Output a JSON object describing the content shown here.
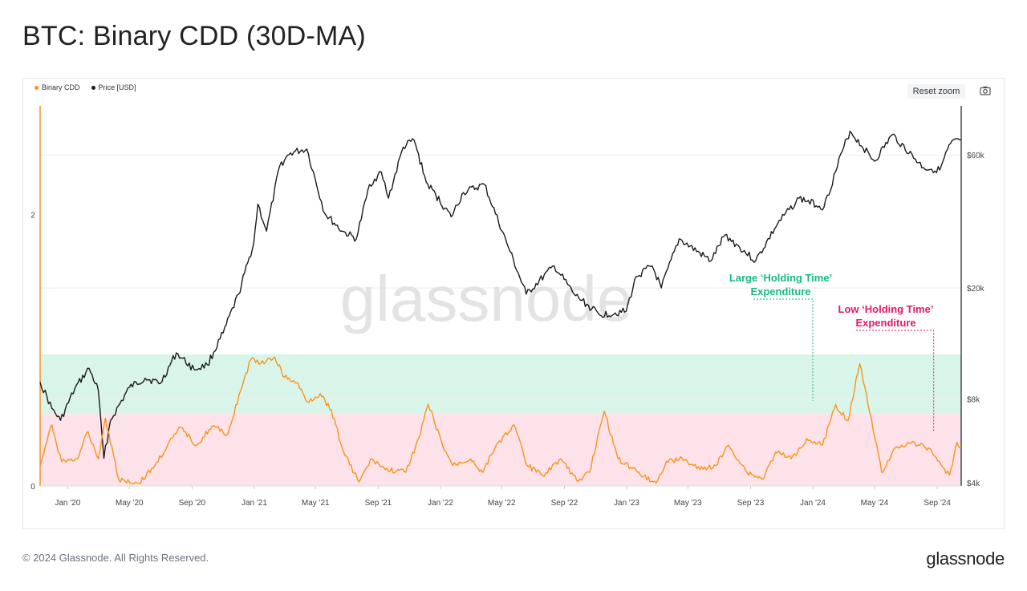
{
  "page": {
    "title": "BTC: Binary CDD (30D-MA)",
    "copyright": "© 2024 Glassnode. All Rights Reserved.",
    "brand": "glassnode"
  },
  "toolbar": {
    "reset_zoom_label": "Reset zoom",
    "camera_icon": "camera-icon"
  },
  "colors": {
    "cdd": "#f7931a",
    "price": "#1a1a1a",
    "green_band": "#d9f5ea",
    "red_band": "#fde2ea",
    "annotation_green": "#16b981",
    "annotation_red": "#e5186a"
  },
  "chart_data": {
    "type": "line",
    "title": "BTC: Binary CDD (30D-MA)",
    "watermark": "glassnode",
    "legend": [
      {
        "name": "Binary CDD",
        "color": "#f7931a"
      },
      {
        "name": "Price [USD]",
        "color": "#1a1a1a"
      }
    ],
    "legend_placement": "top-left",
    "x_ticks": [
      "Jan '20",
      "May '20",
      "Sep '20",
      "Jan '21",
      "May '21",
      "Sep '21",
      "Jan '22",
      "May '22",
      "Sep '22",
      "Jan '23",
      "May '23",
      "Sep '23",
      "Jan '24",
      "May '24",
      "Sep '24"
    ],
    "x_range": [
      "2019-11-08",
      "2024-10-18"
    ],
    "y_left": {
      "ticks": [
        "0",
        "2"
      ],
      "range": [
        0,
        2.8
      ]
    },
    "y_right": {
      "ticks": [
        "$4k",
        "$8k",
        "$20k",
        "$60k"
      ],
      "scale": "log",
      "range": [
        3900,
        90000
      ]
    },
    "bands": [
      {
        "name": "green",
        "from": 0.53,
        "to": 0.97,
        "axis": "left"
      },
      {
        "name": "red",
        "from": 0,
        "to": 0.53,
        "axis": "left"
      }
    ],
    "annotations": [
      {
        "text_lines": [
          "Large ‘Holding Time’",
          "Expenditure"
        ],
        "color": "#16b981",
        "date": "2024-01-01"
      },
      {
        "text_lines": [
          "Low ‘Holding Time’",
          "Expenditure"
        ],
        "color": "#e5186a",
        "date": "2024-08-25"
      }
    ],
    "series": [
      {
        "name": "Price [USD]",
        "axis": "right",
        "points": [
          [
            "2019-11-08",
            9200
          ],
          [
            "2019-12-01",
            7400
          ],
          [
            "2019-12-18",
            6700
          ],
          [
            "2020-01-15",
            8700
          ],
          [
            "2020-02-12",
            10300
          ],
          [
            "2020-03-01",
            8600
          ],
          [
            "2020-03-12",
            4900
          ],
          [
            "2020-03-25",
            6700
          ],
          [
            "2020-05-01",
            8800
          ],
          [
            "2020-06-01",
            9500
          ],
          [
            "2020-07-01",
            9100
          ],
          [
            "2020-08-01",
            11700
          ],
          [
            "2020-09-05",
            10200
          ],
          [
            "2020-10-01",
            10600
          ],
          [
            "2020-11-01",
            13800
          ],
          [
            "2020-12-01",
            19000
          ],
          [
            "2020-12-31",
            29000
          ],
          [
            "2021-01-08",
            40000
          ],
          [
            "2021-01-25",
            32000
          ],
          [
            "2021-02-20",
            55000
          ],
          [
            "2021-03-13",
            61000
          ],
          [
            "2021-04-14",
            63000
          ],
          [
            "2021-05-19",
            37000
          ],
          [
            "2021-06-22",
            32000
          ],
          [
            "2021-07-20",
            30000
          ],
          [
            "2021-08-15",
            47000
          ],
          [
            "2021-09-07",
            52000
          ],
          [
            "2021-09-21",
            42000
          ],
          [
            "2021-10-20",
            64000
          ],
          [
            "2021-11-10",
            68000
          ],
          [
            "2021-12-04",
            48000
          ],
          [
            "2022-01-22",
            36000
          ],
          [
            "2022-02-15",
            44000
          ],
          [
            "2022-03-28",
            47000
          ],
          [
            "2022-05-11",
            29000
          ],
          [
            "2022-06-18",
            19000
          ],
          [
            "2022-08-12",
            24000
          ],
          [
            "2022-09-20",
            19000
          ],
          [
            "2022-11-09",
            16000
          ],
          [
            "2022-12-31",
            16500
          ],
          [
            "2023-01-20",
            22000
          ],
          [
            "2023-02-20",
            24000
          ],
          [
            "2023-03-10",
            20000
          ],
          [
            "2023-04-14",
            30000
          ],
          [
            "2023-06-15",
            25000
          ],
          [
            "2023-07-13",
            31000
          ],
          [
            "2023-09-11",
            25000
          ],
          [
            "2023-10-24",
            34000
          ],
          [
            "2023-12-05",
            42000
          ],
          [
            "2024-01-23",
            39000
          ],
          [
            "2024-02-28",
            62000
          ],
          [
            "2024-03-14",
            73000
          ],
          [
            "2024-05-01",
            57000
          ],
          [
            "2024-06-05",
            71000
          ],
          [
            "2024-08-05",
            54000
          ],
          [
            "2024-09-06",
            53000
          ],
          [
            "2024-09-27",
            66000
          ],
          [
            "2024-10-18",
            68000
          ]
        ]
      },
      {
        "name": "Binary CDD",
        "axis": "left",
        "points": [
          [
            "2019-11-08",
            0.15
          ],
          [
            "2019-12-01",
            0.45
          ],
          [
            "2019-12-20",
            0.18
          ],
          [
            "2020-01-20",
            0.2
          ],
          [
            "2020-02-10",
            0.4
          ],
          [
            "2020-03-01",
            0.2
          ],
          [
            "2020-03-15",
            0.5
          ],
          [
            "2020-04-10",
            0.05
          ],
          [
            "2020-05-20",
            0.02
          ],
          [
            "2020-06-20",
            0.15
          ],
          [
            "2020-07-15",
            0.3
          ],
          [
            "2020-08-10",
            0.43
          ],
          [
            "2020-09-10",
            0.3
          ],
          [
            "2020-10-10",
            0.44
          ],
          [
            "2020-11-10",
            0.38
          ],
          [
            "2020-12-05",
            0.7
          ],
          [
            "2020-12-25",
            0.93
          ],
          [
            "2021-01-20",
            0.9
          ],
          [
            "2021-02-10",
            0.95
          ],
          [
            "2021-03-01",
            0.8
          ],
          [
            "2021-03-25",
            0.76
          ],
          [
            "2021-04-15",
            0.62
          ],
          [
            "2021-05-10",
            0.68
          ],
          [
            "2021-06-01",
            0.56
          ],
          [
            "2021-06-25",
            0.25
          ],
          [
            "2021-07-25",
            0.03
          ],
          [
            "2021-08-20",
            0.2
          ],
          [
            "2021-09-15",
            0.12
          ],
          [
            "2021-10-25",
            0.1
          ],
          [
            "2021-11-20",
            0.36
          ],
          [
            "2021-12-08",
            0.6
          ],
          [
            "2022-01-05",
            0.3
          ],
          [
            "2022-01-25",
            0.15
          ],
          [
            "2022-03-01",
            0.2
          ],
          [
            "2022-03-25",
            0.1
          ],
          [
            "2022-04-20",
            0.3
          ],
          [
            "2022-05-25",
            0.45
          ],
          [
            "2022-06-20",
            0.15
          ],
          [
            "2022-07-20",
            0.08
          ],
          [
            "2022-08-25",
            0.2
          ],
          [
            "2022-09-25",
            0.04
          ],
          [
            "2022-10-20",
            0.1
          ],
          [
            "2022-11-18",
            0.55
          ],
          [
            "2022-12-15",
            0.2
          ],
          [
            "2023-01-25",
            0.1
          ],
          [
            "2023-02-28",
            0.02
          ],
          [
            "2023-03-20",
            0.18
          ],
          [
            "2023-04-20",
            0.2
          ],
          [
            "2023-05-25",
            0.12
          ],
          [
            "2023-06-25",
            0.15
          ],
          [
            "2023-07-20",
            0.3
          ],
          [
            "2023-08-25",
            0.1
          ],
          [
            "2023-09-25",
            0.05
          ],
          [
            "2023-10-20",
            0.25
          ],
          [
            "2023-11-20",
            0.2
          ],
          [
            "2023-12-20",
            0.35
          ],
          [
            "2024-01-20",
            0.3
          ],
          [
            "2024-02-15",
            0.6
          ],
          [
            "2024-03-10",
            0.48
          ],
          [
            "2024-04-02",
            0.9
          ],
          [
            "2024-04-25",
            0.5
          ],
          [
            "2024-05-15",
            0.1
          ],
          [
            "2024-06-05",
            0.25
          ],
          [
            "2024-07-05",
            0.32
          ],
          [
            "2024-07-25",
            0.3
          ],
          [
            "2024-08-15",
            0.28
          ],
          [
            "2024-09-05",
            0.18
          ],
          [
            "2024-09-25",
            0.08
          ],
          [
            "2024-10-10",
            0.32
          ],
          [
            "2024-10-18",
            0.29
          ]
        ]
      }
    ]
  }
}
